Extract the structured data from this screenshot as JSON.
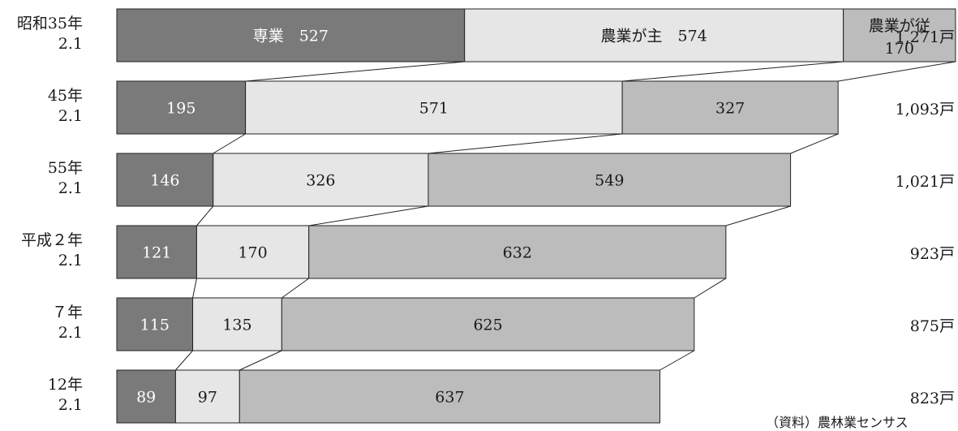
{
  "chart_data": {
    "type": "bar",
    "orientation": "horizontal",
    "stacked": true,
    "categories": [
      {
        "line1": "昭和35年",
        "line2": "2.1"
      },
      {
        "line1": "45年",
        "line2": "2.1"
      },
      {
        "line1": "55年",
        "line2": "2.1"
      },
      {
        "line1": "平成２年",
        "line2": "2.1"
      },
      {
        "line1": "７年",
        "line2": "2.1"
      },
      {
        "line1": "12年",
        "line2": "2.1"
      }
    ],
    "series": [
      {
        "name": "専業",
        "color": "#7a7a7a",
        "values": [
          527,
          195,
          146,
          121,
          115,
          89
        ]
      },
      {
        "name": "農業が主",
        "color": "#e6e6e6",
        "values": [
          574,
          571,
          326,
          170,
          135,
          97
        ]
      },
      {
        "name": "農業が従",
        "color": "#bcbcbc",
        "values": [
          170,
          327,
          549,
          632,
          625,
          637
        ]
      }
    ],
    "first_row_labels": [
      "専業　527",
      "農業が主　574",
      "農業が従",
      "170"
    ],
    "totals": [
      "1,271戸",
      "1,093戸",
      "1,021戸",
      "923戸",
      "875戸",
      "823戸"
    ],
    "source": "（資料）農林業センサス",
    "xlim": [
      0,
      1271
    ],
    "grid": false,
    "legend": "none"
  }
}
